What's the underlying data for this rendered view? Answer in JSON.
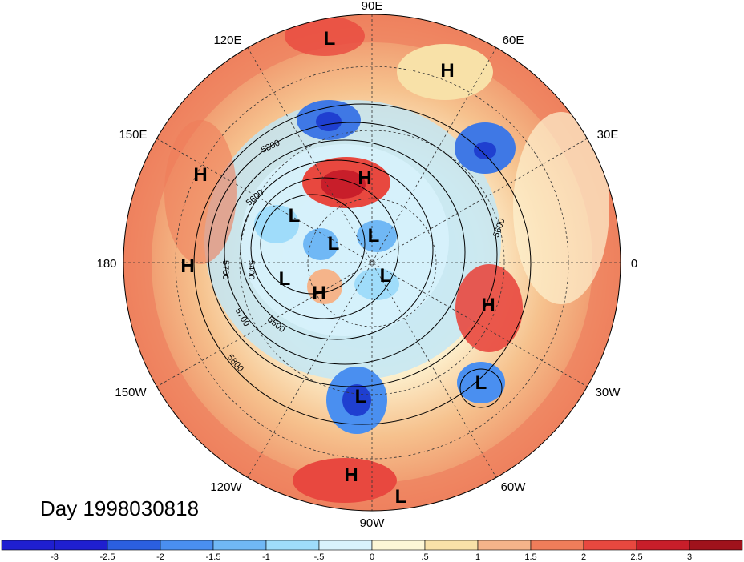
{
  "day_label": "Day 1998030818",
  "longitude_labels": {
    "lon_90e": "90E",
    "lon_60e": "60E",
    "lon_30e": "30E",
    "lon_0": "0",
    "lon_30w": "30W",
    "lon_60w": "60W",
    "lon_90w": "90W",
    "lon_120w": "120W",
    "lon_150w": "150W",
    "lon_180": "180",
    "lon_150e": "150E",
    "lon_120e": "120E"
  },
  "contour_labels": [
    "5800",
    "5600",
    "5700",
    "5400",
    "5700",
    "5500",
    "5800",
    "5600"
  ],
  "pressure_centers": [
    {
      "type": "L"
    },
    {
      "type": "H"
    },
    {
      "type": "H"
    },
    {
      "type": "H"
    },
    {
      "type": "H"
    },
    {
      "type": "L"
    },
    {
      "type": "L"
    },
    {
      "type": "L"
    },
    {
      "type": "L"
    },
    {
      "type": "H"
    },
    {
      "type": "L"
    },
    {
      "type": "H"
    },
    {
      "type": "L"
    },
    {
      "type": "L"
    },
    {
      "type": "H"
    },
    {
      "type": "L"
    }
  ],
  "colorbar": {
    "tick_labels": [
      "-3",
      "-2.5",
      "-2",
      "-1.5",
      "-1",
      "-.5",
      "0",
      ".5",
      "1",
      "1.5",
      "2",
      "2.5",
      "3"
    ],
    "colors": [
      "#1f1fd0",
      "#2b5fe0",
      "#4a8ff0",
      "#70b8f5",
      "#9fdcfa",
      "#d8f3fd",
      "#fdf7d6",
      "#f8e1a8",
      "#f5b48a",
      "#ef7d5a",
      "#e8483f",
      "#c81e2a",
      "#a0121c"
    ]
  }
}
